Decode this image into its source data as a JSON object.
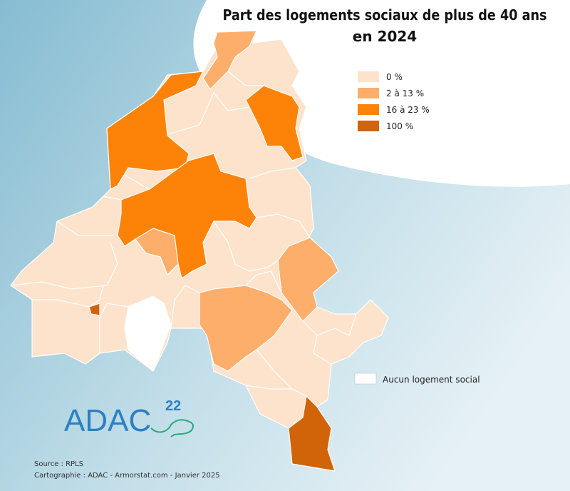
{
  "title": [
    "Part des logements sociaux de plus de 40 ans",
    "en 2024"
  ],
  "legend": {
    "items": [
      {
        "label": "0 %",
        "color": "#fde3cc"
      },
      {
        "label": "2 à 13 %",
        "color": "#fdae6b"
      },
      {
        "label": "16 à 23 %",
        "color": "#fd8308"
      },
      {
        "label": "100 %",
        "color": "#d16308"
      }
    ],
    "none": {
      "label": "Aucun logement social",
      "color": "#ffffff"
    }
  },
  "logo": {
    "text": "ADAC",
    "sup": "22"
  },
  "footer": [
    "Source : RPLS",
    "Cartographie : ADAC - Armorstat.com - Janvier 2025"
  ]
}
